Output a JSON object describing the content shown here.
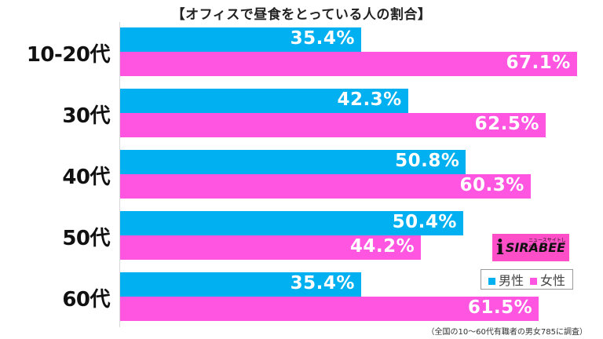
{
  "title": "【オフィスで昼食をとっている人の割合】",
  "legend": {
    "male": "男性",
    "female": "女性",
    "male_color": "#00b0f0",
    "female_color": "#ff55e0"
  },
  "logo": {
    "brand": "SIRABEE",
    "tagline": "ニュースサイトしらべぇ"
  },
  "note": "（全国の10〜60代有職者の男女785に調査）",
  "groups": [
    {
      "label": "10-20代",
      "male": "35.4%",
      "female": "67.1%"
    },
    {
      "label": "30代",
      "male": "42.3%",
      "female": "62.5%"
    },
    {
      "label": "40代",
      "male": "50.8%",
      "female": "60.3%"
    },
    {
      "label": "50代",
      "male": "50.4%",
      "female": "44.2%"
    },
    {
      "label": "60代",
      "male": "35.4%",
      "female": "61.5%"
    }
  ],
  "chart_data": {
    "type": "bar",
    "orientation": "horizontal",
    "title": "【オフィスで昼食をとっている人の割合】",
    "categories": [
      "10-20代",
      "30代",
      "40代",
      "50代",
      "60代"
    ],
    "series": [
      {
        "name": "男性",
        "color": "#00b0f0",
        "values": [
          35.4,
          42.3,
          50.8,
          50.4,
          35.4
        ]
      },
      {
        "name": "女性",
        "color": "#ff55e0",
        "values": [
          67.1,
          62.5,
          60.3,
          44.2,
          61.5
        ]
      }
    ],
    "xlabel": "",
    "ylabel": "",
    "unit": "%",
    "grid": false,
    "legend_position": "lower right",
    "data_labels": true,
    "annotation": "（全国の10〜60代有職者の男女785に調査）"
  }
}
